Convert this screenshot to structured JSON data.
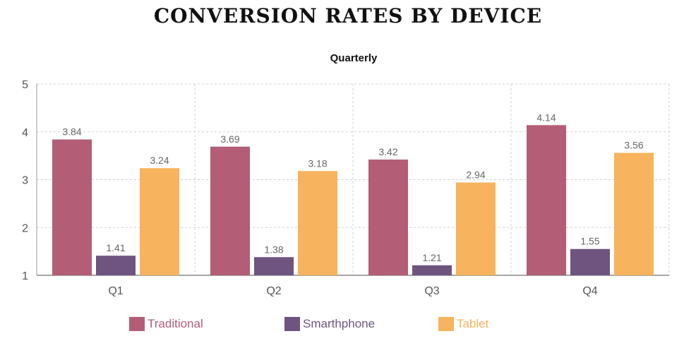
{
  "title": "CONVERSION RATES BY DEVICE",
  "subtitle": "Quarterly",
  "chart_data": {
    "type": "bar",
    "title": "CONVERSION RATES BY DEVICE",
    "subtitle": "Quarterly",
    "xlabel": "",
    "ylabel": "",
    "categories": [
      "Q1",
      "Q2",
      "Q3",
      "Q4"
    ],
    "ylim": [
      1,
      5
    ],
    "yticks": [
      1,
      2,
      3,
      4,
      5
    ],
    "grid": true,
    "legend_position": "bottom",
    "series": [
      {
        "name": "Traditional",
        "color": "#b35d76",
        "values": [
          3.84,
          3.69,
          3.42,
          4.14
        ],
        "labels": [
          "3.84",
          "3.69",
          "3.42",
          "4.14"
        ]
      },
      {
        "name": "Smarthphone",
        "color": "#6f547f",
        "values": [
          1.41,
          1.38,
          1.21,
          1.55
        ],
        "labels": [
          "1.41",
          "1.38",
          "1.21",
          "1.55"
        ]
      },
      {
        "name": "Tablet",
        "color": "#f7b35d",
        "values": [
          3.24,
          3.18,
          2.94,
          3.56
        ],
        "labels": [
          "3.24",
          "3.18",
          "2.94",
          "3.56"
        ]
      }
    ]
  }
}
